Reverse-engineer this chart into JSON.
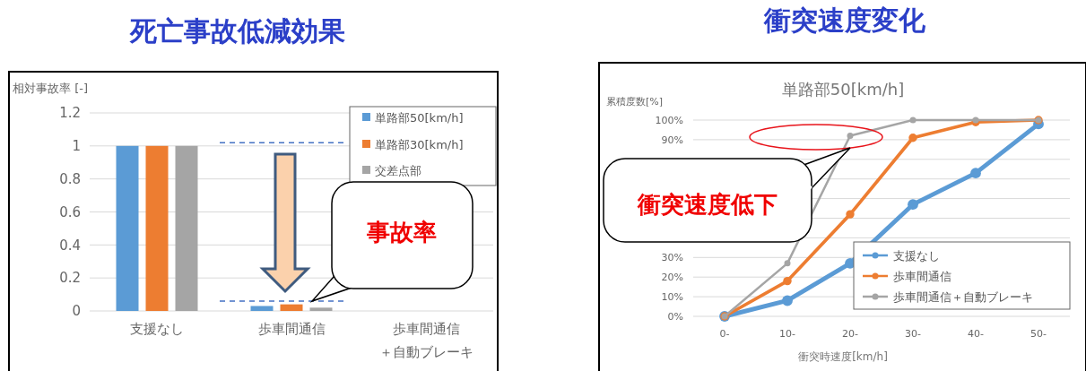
{
  "chart_data": [
    {
      "type": "bar",
      "title": "死亡事故低減効果",
      "ylabel": "相対事故率 [-]",
      "categories": [
        "支援なし",
        "歩車間通信",
        "歩車間通信＋自動ブレーキ"
      ],
      "series": [
        {
          "name": "単路部50[km/h]",
          "color": "#5b9bd5",
          "values": [
            1,
            0.03,
            null
          ]
        },
        {
          "name": "単路部30[km/h]",
          "color": "#ed7d31",
          "values": [
            1,
            0.04,
            null
          ]
        },
        {
          "name": "交差点部",
          "color": "#a5a5a5",
          "values": [
            1,
            0.02,
            null
          ]
        }
      ],
      "ylim": [
        0,
        1.2
      ],
      "yticks": [
        0,
        0.2,
        0.4,
        0.6,
        0.8,
        1,
        1.2
      ],
      "grid": "y",
      "legend": "top right",
      "ref_lines": [
        {
          "axis": "y",
          "value": 1.02,
          "color": "#4472c4",
          "line_style": "dashed"
        },
        {
          "axis": "y",
          "value": 0.06,
          "color": "#4472c4",
          "line_style": "dashed"
        }
      ],
      "annotations": [
        "事故率"
      ]
    },
    {
      "type": "line",
      "title": "衝突速度変化",
      "subtitle": "単路部50[km/h]",
      "xlabel": "衝突時速度[km/h]",
      "ylabel": "累積度数[%]",
      "categories": [
        "0-",
        "10-",
        "20-",
        "30-",
        "40-",
        "50-"
      ],
      "series": [
        {
          "name": "支援なし",
          "color": "#5b9bd5",
          "values": [
            0,
            8,
            27,
            57,
            73,
            98
          ]
        },
        {
          "name": "歩車間通信",
          "color": "#ed7d31",
          "values": [
            0,
            18,
            52,
            91,
            99,
            100
          ]
        },
        {
          "name": "歩車間通信＋自動ブレーキ",
          "color": "#a5a5a5",
          "values": [
            0,
            27,
            92,
            100,
            100,
            100
          ]
        }
      ],
      "ylim": [
        0,
        100
      ],
      "yticks": [
        {
          "value": 0,
          "label": "0%"
        },
        {
          "value": 10,
          "label": "10%"
        },
        {
          "value": 20,
          "label": "20%"
        },
        {
          "value": 30,
          "label": "30%"
        },
        {
          "value": 40,
          "label": null
        },
        {
          "value": 50,
          "label": null
        },
        {
          "value": 60,
          "label": null
        },
        {
          "value": 70,
          "label": null
        },
        {
          "value": 80,
          "label": null
        },
        {
          "value": 90,
          "label": "90%"
        },
        {
          "value": 100,
          "label": "100%"
        }
      ],
      "grid": "y",
      "legend": "bottom right",
      "marker": "circle",
      "annotations": [
        "衝突速度低下"
      ]
    }
  ]
}
